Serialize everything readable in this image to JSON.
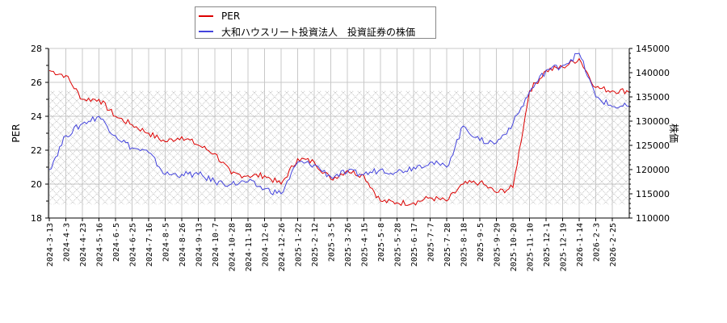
{
  "legend": {
    "items": [
      {
        "label": "PER",
        "color": "#dd0000"
      },
      {
        "label": "大和ハウスリート投資法人　投資証券の株価",
        "color": "#4444dd"
      }
    ]
  },
  "axes": {
    "left_label": "PER",
    "right_label": "株価",
    "left_ticks": [
      "18",
      "20",
      "22",
      "24",
      "26",
      "28"
    ],
    "right_ticks": [
      "110000",
      "115000",
      "120000",
      "125000",
      "130000",
      "135000",
      "140000",
      "145000"
    ]
  },
  "chart_data": {
    "type": "line",
    "title": "",
    "xlabel": "",
    "ylabel": "PER",
    "y2label": "株価",
    "ylim": [
      18,
      28
    ],
    "y2lim": [
      110000,
      145000
    ],
    "grid": true,
    "legend_position": "top",
    "shaded_band": {
      "axis": "left",
      "from": 18.8,
      "to": 25.5,
      "style": "crosshatch"
    },
    "categories": [
      "2024-3-13",
      "2024-4-3",
      "2024-4-23",
      "2024-5-16",
      "2024-6-5",
      "2024-6-25",
      "2024-7-16",
      "2024-8-5",
      "2024-8-26",
      "2024-9-13",
      "2024-10-7",
      "2024-10-28",
      "2024-11-18",
      "2024-12-6",
      "2024-12-26",
      "2025-1-22",
      "2025-2-12",
      "2025-3-5",
      "2025-3-26",
      "2025-4-15",
      "2025-5-8",
      "2025-5-28",
      "2025-6-17",
      "2025-7-7",
      "2025-7-28",
      "2025-8-18",
      "2025-9-5",
      "2025-9-29",
      "2025-10-20",
      "2025-11-10",
      "2025-12-1",
      "2025-12-19",
      "2026-1-14",
      "2026-2-3",
      "2026-2-25"
    ],
    "series": [
      {
        "name": "PER",
        "axis": "left",
        "color": "#dd0000",
        "values": [
          26.7,
          26.4,
          25.0,
          25.0,
          24.0,
          23.5,
          23.0,
          22.5,
          22.8,
          22.3,
          21.8,
          20.6,
          20.5,
          20.5,
          20.0,
          21.5,
          21.3,
          20.3,
          20.8,
          20.5,
          19.0,
          18.9,
          18.9,
          19.2,
          19.0,
          20.0,
          20.1,
          19.5,
          19.8,
          25.5,
          26.7,
          26.9,
          27.4,
          25.7,
          25.5
        ]
      },
      {
        "name": "大和ハウスリート投資法人　投資証券の株価",
        "axis": "right",
        "color": "#4444dd",
        "values": [
          120000,
          127000,
          129500,
          131000,
          127000,
          124500,
          123500,
          119000,
          119000,
          119000,
          117500,
          117000,
          117500,
          116000,
          115000,
          121500,
          121000,
          118500,
          119500,
          119000,
          120000,
          119500,
          120500,
          121500,
          120500,
          129000,
          126000,
          125500,
          129500,
          136000,
          140500,
          141500,
          144000,
          135000,
          133000
        ]
      }
    ]
  }
}
